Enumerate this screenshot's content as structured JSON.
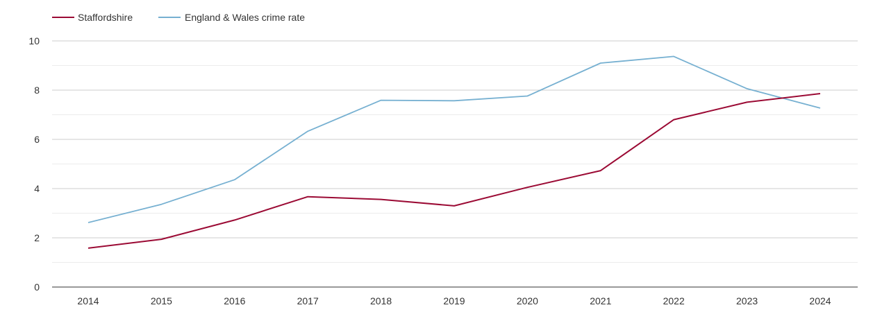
{
  "chart_data": {
    "type": "line",
    "title": "",
    "xlabel": "",
    "ylabel": "",
    "x": [
      "2014",
      "2015",
      "2016",
      "2017",
      "2018",
      "2019",
      "2020",
      "2021",
      "2022",
      "2023",
      "2024"
    ],
    "ylim": [
      0,
      10
    ],
    "yticks": [
      "0",
      "2",
      "4",
      "6",
      "8",
      "10"
    ],
    "grid": true,
    "legend": "top-left",
    "series": [
      {
        "name": "Staffordshire",
        "color": "#9b0a34",
        "values": [
          1.58,
          1.94,
          2.72,
          3.67,
          3.56,
          3.3,
          4.05,
          4.73,
          6.8,
          7.51,
          7.86
        ]
      },
      {
        "name": "England & Wales crime rate",
        "color": "#76b0d1",
        "values": [
          2.62,
          3.36,
          4.36,
          6.33,
          7.59,
          7.57,
          7.76,
          9.1,
          9.37,
          8.06,
          7.27
        ]
      }
    ]
  }
}
